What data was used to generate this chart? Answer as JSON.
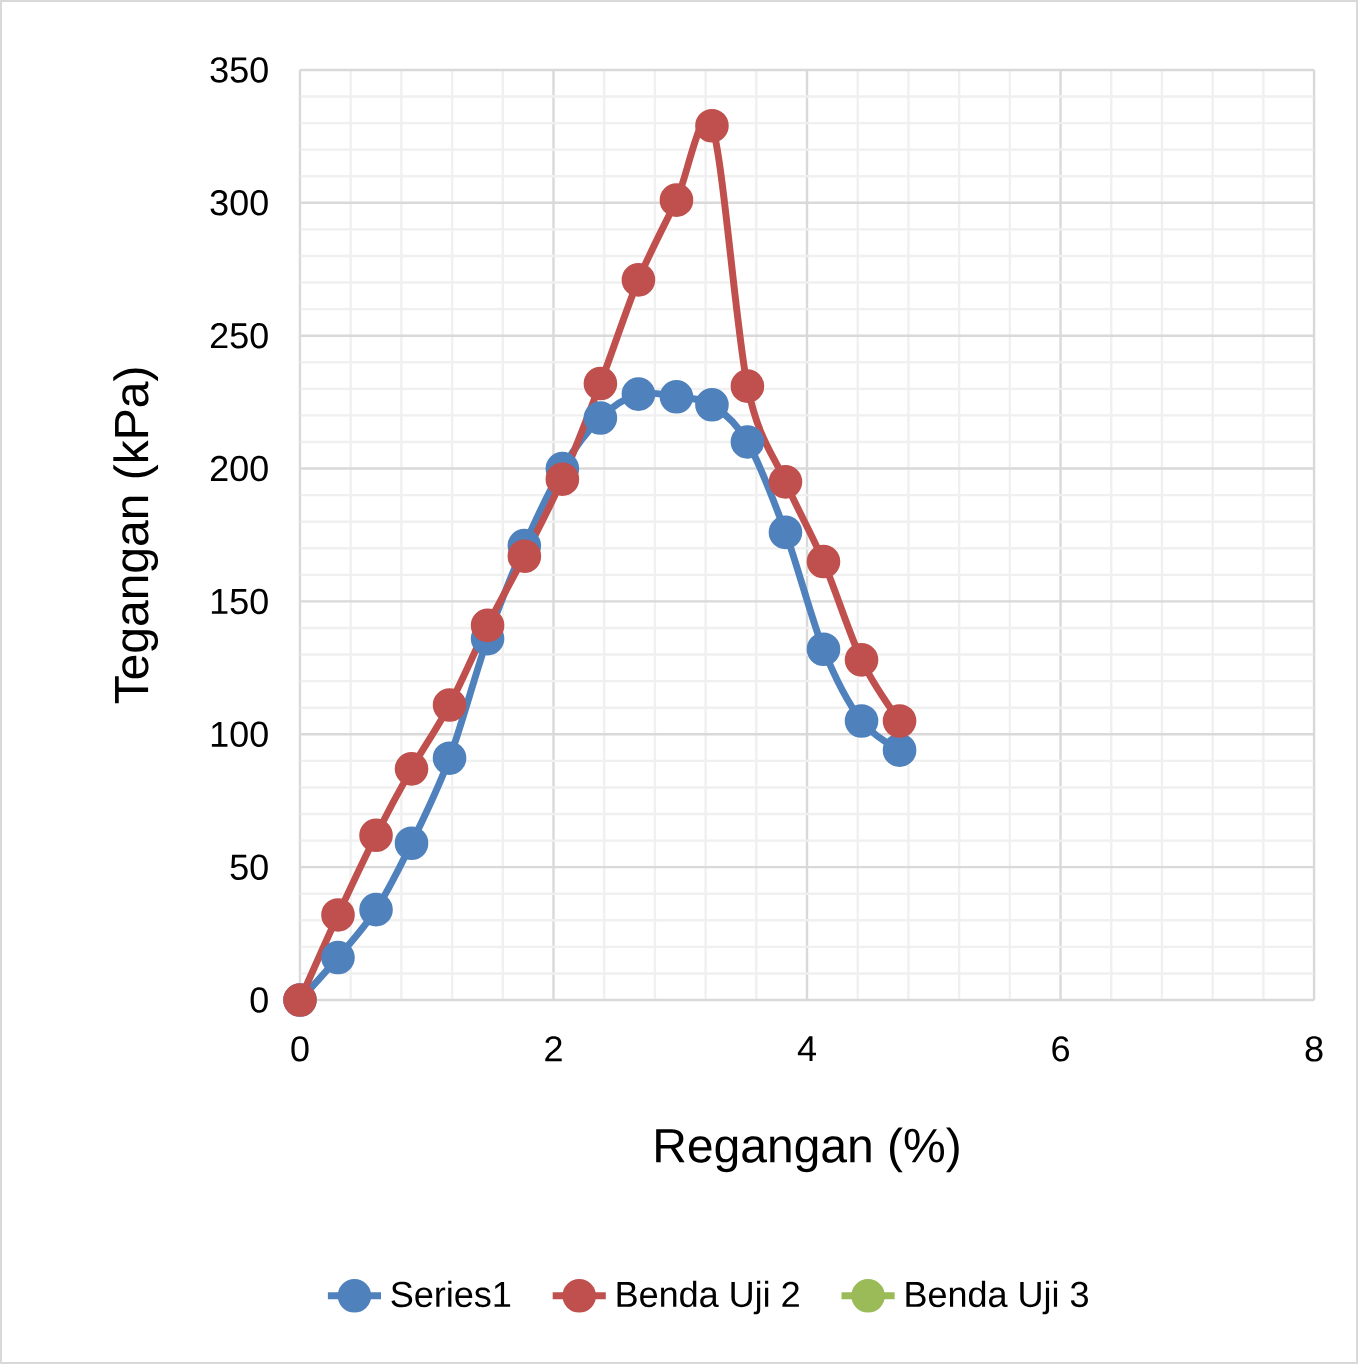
{
  "chart_data": {
    "type": "line",
    "xlabel": "Regangan (%)",
    "ylabel": "Tegangan (kPa)",
    "x": [
      0,
      0.3,
      0.6,
      0.88,
      1.18,
      1.48,
      1.77,
      2.07,
      2.37,
      2.67,
      2.97,
      3.25,
      3.53,
      3.83,
      4.13,
      4.43,
      4.73
    ],
    "series": [
      {
        "name": "Series1",
        "color": "#4f81bd",
        "values": [
          0,
          16,
          34,
          59,
          91,
          136,
          171,
          200,
          219,
          228,
          227,
          224,
          210,
          176,
          132,
          105,
          94
        ]
      },
      {
        "name": "Benda Uji 2",
        "color": "#c0504d",
        "values": [
          0,
          32,
          62,
          87,
          111,
          141,
          167,
          196,
          232,
          271,
          301,
          329,
          231,
          195,
          165,
          128,
          105
        ]
      },
      {
        "name": "Benda Uji 3",
        "color": "#9bbb59",
        "values": [
          null,
          null,
          null,
          null,
          null,
          null,
          null,
          null,
          null,
          null,
          null,
          null,
          null,
          null,
          null,
          null,
          null
        ]
      }
    ],
    "xlim": [
      0,
      8
    ],
    "xticks": [
      0,
      2,
      4,
      6,
      8
    ],
    "ylim": [
      0,
      350
    ],
    "yticks": [
      0,
      50,
      100,
      150,
      200,
      250,
      300,
      350
    ],
    "grid": true,
    "legend": "bottom",
    "marker": "circle",
    "line_style": "solid"
  }
}
